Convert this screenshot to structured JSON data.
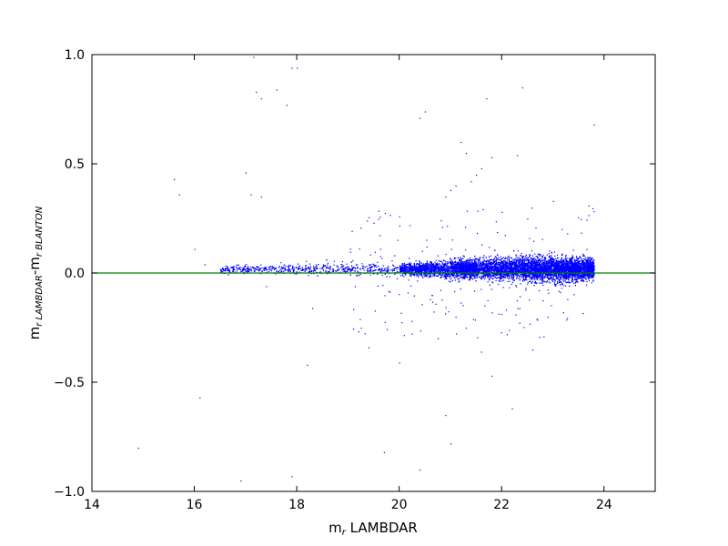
{
  "chart_data": {
    "type": "scatter",
    "xlabel": {
      "main": "m",
      "sub": "r",
      "rest": " LAMBDAR"
    },
    "ylabel": {
      "main1": "m",
      "sub1": "r LAMBDAR",
      "sep": "-m",
      "sub2": "r BLANTON"
    },
    "xlim": [
      14,
      25
    ],
    "ylim": [
      -1.0,
      1.0
    ],
    "xticks": [
      "14",
      "16",
      "18",
      "20",
      "22",
      "24"
    ],
    "yticks": [
      "1.0",
      "0.5",
      "0.0",
      "−0.5",
      "−1.0"
    ],
    "grid": false,
    "reference_line": {
      "y": 0.0,
      "color": "#008000"
    },
    "point_color": "#0000ff",
    "dense_band": {
      "x_range": [
        16.5,
        23.8
      ],
      "center_y": 0.02,
      "spread_y_at_x": [
        [
          16.5,
          0.015
        ],
        [
          18,
          0.02
        ],
        [
          20,
          0.025
        ],
        [
          21,
          0.035
        ],
        [
          22,
          0.045
        ],
        [
          23,
          0.05
        ],
        [
          23.8,
          0.04
        ]
      ],
      "density_peak_x": 22.6
    },
    "outliers": [
      [
        15.6,
        0.43
      ],
      [
        15.7,
        0.36
      ],
      [
        16.0,
        0.11
      ],
      [
        17.0,
        0.46
      ],
      [
        17.1,
        0.36
      ],
      [
        17.3,
        0.35
      ],
      [
        17.2,
        0.83
      ],
      [
        17.3,
        0.8
      ],
      [
        17.6,
        0.84
      ],
      [
        17.8,
        0.77
      ],
      [
        17.9,
        0.94
      ],
      [
        18.0,
        0.94
      ],
      [
        17.15,
        0.99
      ],
      [
        20.4,
        0.71
      ],
      [
        20.5,
        0.74
      ],
      [
        22.4,
        0.85
      ],
      [
        21.7,
        0.8
      ],
      [
        23.8,
        0.68
      ],
      [
        21.2,
        0.6
      ],
      [
        21.3,
        0.55
      ],
      [
        21.5,
        0.45
      ],
      [
        21.6,
        0.48
      ],
      [
        21.1,
        0.4
      ],
      [
        21.0,
        0.38
      ],
      [
        22.3,
        0.54
      ],
      [
        21.8,
        0.53
      ],
      [
        23.0,
        0.33
      ],
      [
        23.7,
        0.31
      ],
      [
        20.9,
        0.35
      ],
      [
        21.4,
        0.42
      ],
      [
        22.0,
        0.28
      ],
      [
        22.5,
        0.25
      ],
      [
        19.5,
        0.23
      ],
      [
        20.2,
        0.22
      ],
      [
        20.0,
        0.26
      ],
      [
        18.3,
        -0.16
      ],
      [
        18.2,
        -0.42
      ],
      [
        16.1,
        -0.57
      ],
      [
        14.9,
        -0.8
      ],
      [
        16.9,
        -0.95
      ],
      [
        17.9,
        -0.93
      ],
      [
        19.4,
        -0.34
      ],
      [
        20.0,
        -0.41
      ],
      [
        20.9,
        -0.65
      ],
      [
        21.0,
        -0.78
      ],
      [
        19.7,
        -0.82
      ],
      [
        20.4,
        -0.9
      ],
      [
        21.8,
        -0.47
      ],
      [
        22.2,
        -0.62
      ],
      [
        21.6,
        -0.36
      ],
      [
        22.6,
        -0.35
      ],
      [
        21.3,
        -0.25
      ],
      [
        22.9,
        -0.2
      ],
      [
        17.4,
        -0.06
      ],
      [
        16.2,
        0.04
      ],
      [
        21.1,
        -0.2
      ],
      [
        22.1,
        -0.28
      ],
      [
        23.2,
        -0.18
      ],
      [
        20.6,
        -0.12
      ]
    ]
  }
}
